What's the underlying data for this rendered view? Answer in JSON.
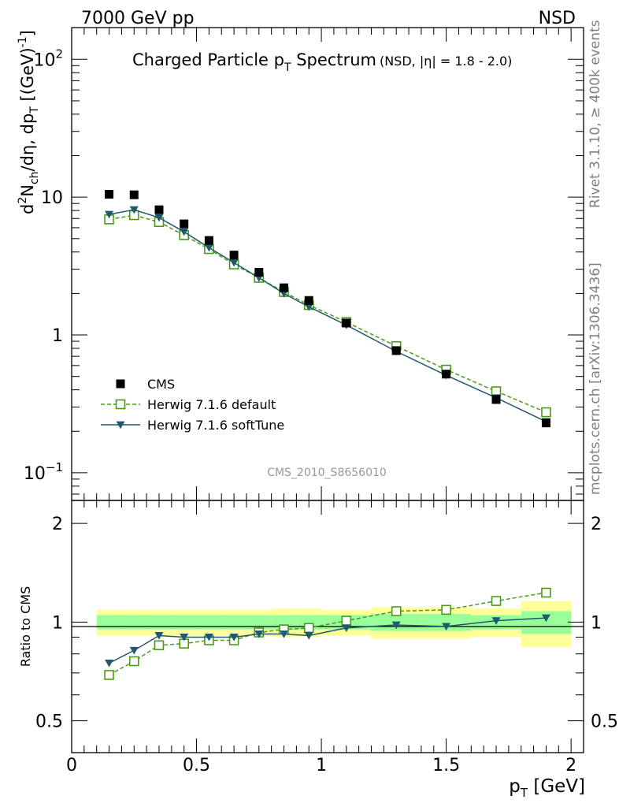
{
  "header": {
    "energy_label": "7000 GeV pp",
    "process_label": "NSD"
  },
  "plot": {
    "title_main": "Charged Particle p",
    "title_sub": "T",
    "title_end": " Spectrum",
    "title_note": "(NSD, |η| = 1.8 - 2.0)",
    "watermark": "CMS_2010_S8656010"
  },
  "ylabel": {
    "d": "d",
    "sup2": "2",
    "N": "N",
    "ch": "ch",
    "mid": "/dη, dp",
    "T": "T",
    "unit": " [(GeV)",
    "exp": "-1",
    "close": "]"
  },
  "ratio_ylabel": "Ratio to CMS",
  "xlabel": {
    "p": "p",
    "T": "T",
    "unit": " [GeV]"
  },
  "side": {
    "rivet": "Rivet 3.1.10, ≥ 400k events",
    "mcplots": "mcplots.cern.ch [arXiv:1306.3436]"
  },
  "chart_data": [
    {
      "type": "scatter",
      "panel": "main",
      "xlim": [
        0,
        2.05
      ],
      "ylim": [
        0.063,
        170
      ],
      "yscale": "log",
      "x_ticks": [
        "0",
        "0.5",
        "1",
        "1.5",
        "2"
      ],
      "y_ticks": [
        {
          "value": 0.1,
          "base": "10",
          "exp": "−1"
        },
        {
          "value": 1,
          "base": "1",
          "exp": ""
        },
        {
          "value": 10,
          "base": "10",
          "exp": ""
        },
        {
          "value": 100,
          "base": "10",
          "exp": "2"
        }
      ],
      "legend_position": "bottom-left",
      "series": [
        {
          "name": "CMS",
          "color": "#000000",
          "marker": "filled-square",
          "x": [
            0.15,
            0.25,
            0.35,
            0.45,
            0.55,
            0.65,
            0.75,
            0.85,
            0.95,
            1.1,
            1.3,
            1.5,
            1.7,
            1.9
          ],
          "y": [
            10.5,
            10.4,
            8.1,
            6.4,
            4.85,
            3.8,
            2.85,
            2.2,
            1.78,
            1.22,
            0.77,
            0.52,
            0.34,
            0.23
          ]
        },
        {
          "name": "Herwig 7.1.6 default",
          "color": "#4a9a1a",
          "marker": "open-square",
          "line": "dashed",
          "x": [
            0.15,
            0.25,
            0.35,
            0.45,
            0.55,
            0.65,
            0.75,
            0.85,
            0.95,
            1.1,
            1.3,
            1.5,
            1.7,
            1.9
          ],
          "y": [
            6.9,
            7.4,
            6.6,
            5.3,
            4.2,
            3.25,
            2.6,
            2.05,
            1.65,
            1.24,
            0.83,
            0.56,
            0.39,
            0.275
          ]
        },
        {
          "name": "Herwig 7.1.6 softTune",
          "color": "#1f5a6c",
          "marker": "filled-triangle-down",
          "line": "solid",
          "x": [
            0.15,
            0.25,
            0.35,
            0.45,
            0.55,
            0.65,
            0.75,
            0.85,
            0.95,
            1.1,
            1.3,
            1.5,
            1.7,
            1.9
          ],
          "y": [
            7.5,
            8.1,
            7.1,
            5.6,
            4.3,
            3.35,
            2.6,
            2.0,
            1.6,
            1.18,
            0.76,
            0.51,
            0.35,
            0.235
          ]
        }
      ]
    },
    {
      "type": "line",
      "panel": "ratio",
      "xlim": [
        0,
        2.05
      ],
      "ylim": [
        0.4,
        2.35
      ],
      "yscale": "log",
      "x_ticks": [
        "0",
        "0.5",
        "1",
        "1.5",
        "2"
      ],
      "y_ticks": [
        {
          "value": 0.5,
          "label": "0.5"
        },
        {
          "value": 1,
          "label": "1"
        },
        {
          "value": 2,
          "label": "2"
        }
      ],
      "bands": {
        "bins": [
          0.1,
          0.2,
          0.3,
          0.4,
          0.5,
          0.6,
          0.7,
          0.8,
          0.9,
          1.0,
          1.2,
          1.4,
          1.6,
          1.8,
          2.0
        ],
        "yellow_halfwidth": [
          0.09,
          0.09,
          0.09,
          0.09,
          0.09,
          0.09,
          0.09,
          0.1,
          0.1,
          0.09,
          0.11,
          0.11,
          0.1,
          0.16
        ],
        "green_halfwidth": [
          0.05,
          0.05,
          0.05,
          0.05,
          0.05,
          0.05,
          0.05,
          0.05,
          0.05,
          0.05,
          0.06,
          0.06,
          0.05,
          0.08
        ],
        "yellow_color": "#ffff99",
        "green_color": "#99ff99"
      },
      "series": [
        {
          "name": "Herwig 7.1.6 default",
          "color": "#4a9a1a",
          "marker": "open-square",
          "line": "dashed",
          "x": [
            0.15,
            0.25,
            0.35,
            0.45,
            0.55,
            0.65,
            0.75,
            0.85,
            0.95,
            1.1,
            1.3,
            1.5,
            1.7,
            1.9
          ],
          "y": [
            0.69,
            0.76,
            0.85,
            0.86,
            0.88,
            0.88,
            0.93,
            0.95,
            0.96,
            1.01,
            1.08,
            1.09,
            1.16,
            1.23
          ]
        },
        {
          "name": "Herwig 7.1.6 softTune",
          "color": "#1f5a6c",
          "marker": "filled-triangle-down",
          "line": "solid",
          "x": [
            0.15,
            0.25,
            0.35,
            0.45,
            0.55,
            0.65,
            0.75,
            0.85,
            0.95,
            1.1,
            1.3,
            1.5,
            1.7,
            1.9
          ],
          "y": [
            0.75,
            0.82,
            0.91,
            0.9,
            0.9,
            0.9,
            0.92,
            0.92,
            0.91,
            0.96,
            0.98,
            0.97,
            1.01,
            1.03
          ]
        }
      ]
    }
  ]
}
